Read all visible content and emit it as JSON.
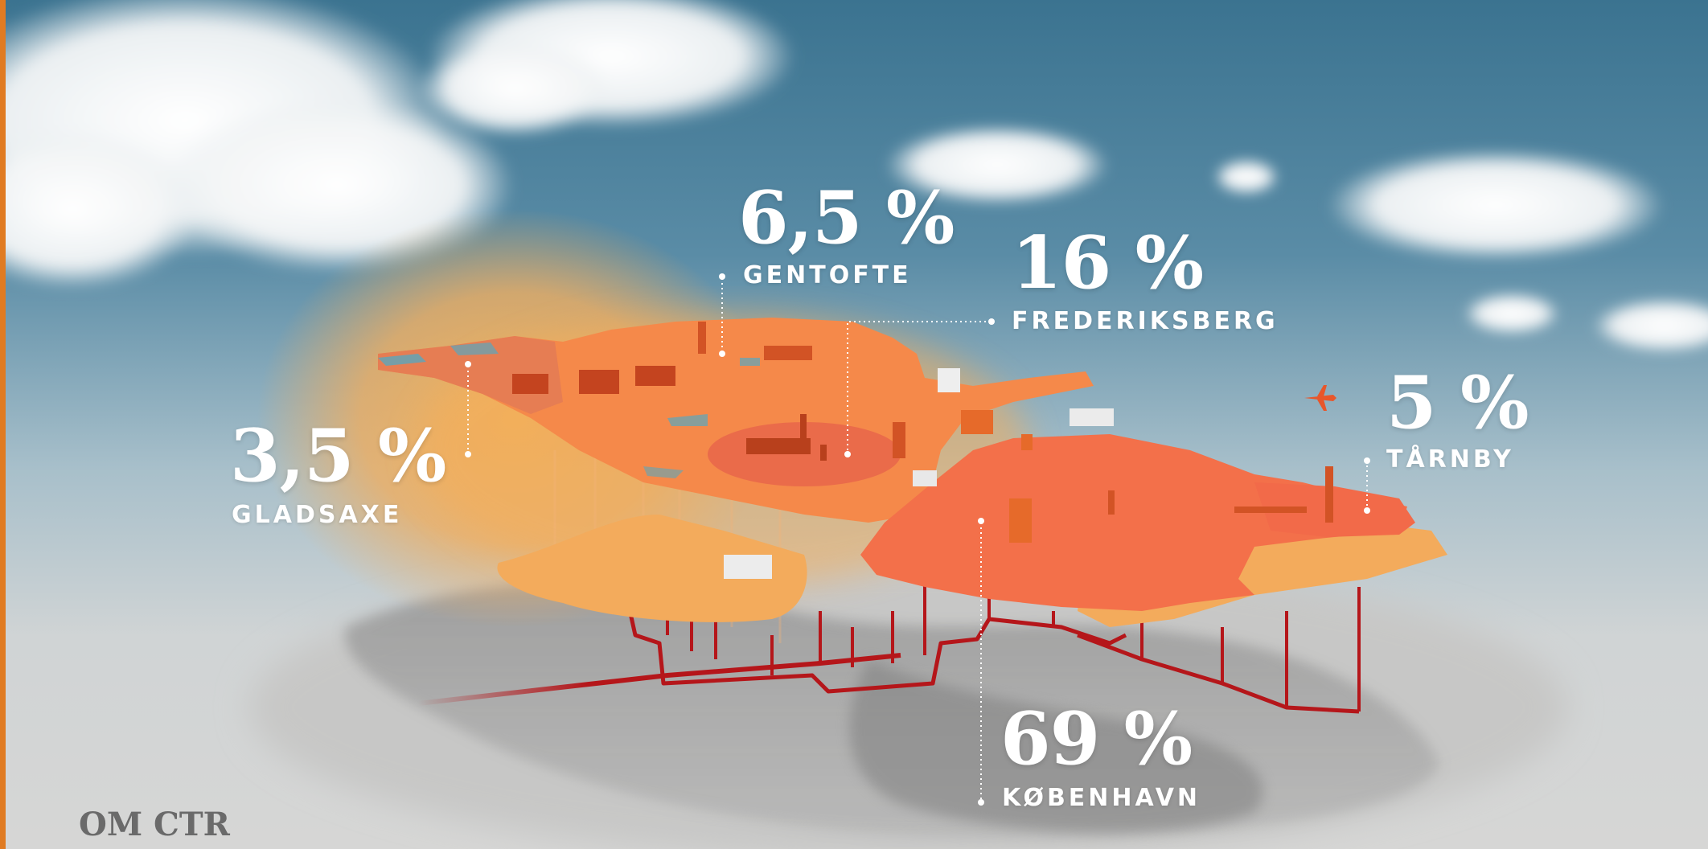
{
  "colors": {
    "sky_top": "#3e7692",
    "sky_mid": "#8fb0bf",
    "haze": "#d3d3d2",
    "land_light": "#f3ab5c",
    "land_orange": "#f5894a",
    "land_deep": "#f3704a",
    "pipe_red": "#b5161a",
    "edge_accent": "#e07b22"
  },
  "municipalities": [
    {
      "id": "gentofte",
      "pct": "6,5 %",
      "name": "GENTOFTE"
    },
    {
      "id": "frederiksberg",
      "pct": "16 %",
      "name": "FREDERIKSBERG"
    },
    {
      "id": "gladsaxe",
      "pct": "3,5 %",
      "name": "GLADSAXE"
    },
    {
      "id": "tarnby",
      "pct": "5 %",
      "name": "TÅRNBY"
    },
    {
      "id": "kobenhavn",
      "pct": "69 %",
      "name": "KØBENHAVN"
    }
  ],
  "footer": {
    "section_label": "OM CTR"
  }
}
